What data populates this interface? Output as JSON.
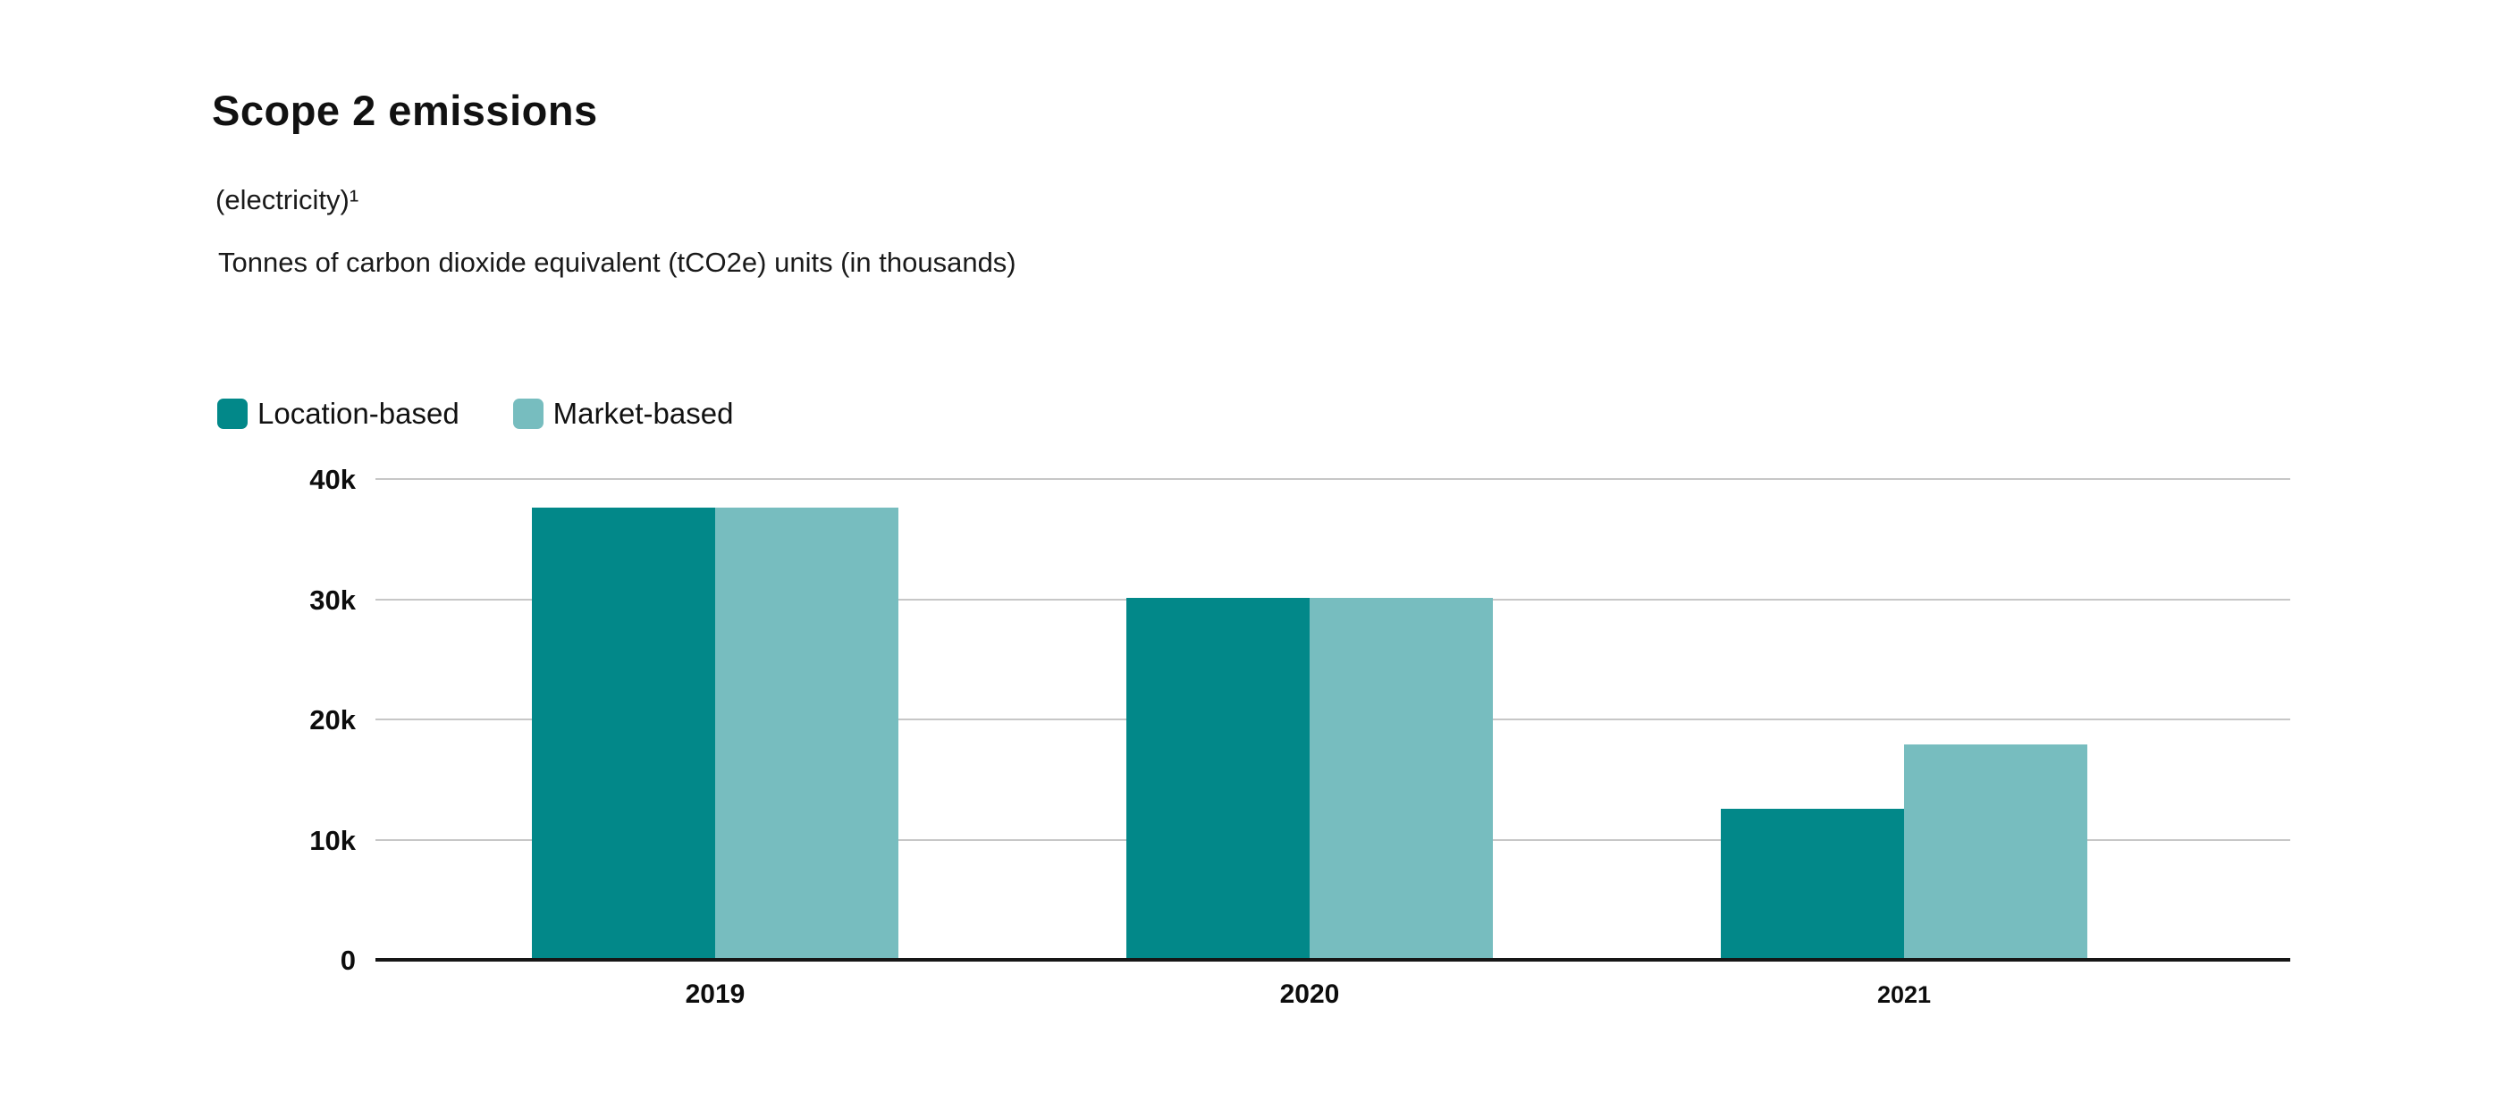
{
  "header": {
    "title": "Scope 2 emissions",
    "subtitle_line1": "(electricity)¹",
    "subtitle_line2": "Tonnes of carbon dioxide equivalent (tCO2e) units (in thousands)"
  },
  "chart_data": {
    "type": "bar",
    "title": "Scope 2 emissions",
    "subtitle": "(electricity)¹",
    "ylabel": "Tonnes of carbon dioxide equivalent (tCO2e) units (in thousands)",
    "xlabel": "",
    "categories": [
      "2019",
      "2020",
      "2021"
    ],
    "series": [
      {
        "name": "Location-based",
        "color": "#028889",
        "values": [
          37500,
          30000,
          12400
        ]
      },
      {
        "name": "Market-based",
        "color": "#77BDBF",
        "values": [
          37500,
          30000,
          17800
        ]
      }
    ],
    "ylim": [
      0,
      40000
    ],
    "yticks": [
      {
        "value": 40000,
        "label": "40k"
      },
      {
        "value": 30000,
        "label": "30k"
      },
      {
        "value": 20000,
        "label": "20k"
      },
      {
        "value": 10000,
        "label": "10k"
      },
      {
        "value": 0,
        "label": "0"
      }
    ],
    "grid": "horizontal",
    "legend_position": "top-left"
  },
  "colors": {
    "grid": "#c7c7c7",
    "axis": "#161616",
    "text": "#111111",
    "background": "#ffffff"
  }
}
